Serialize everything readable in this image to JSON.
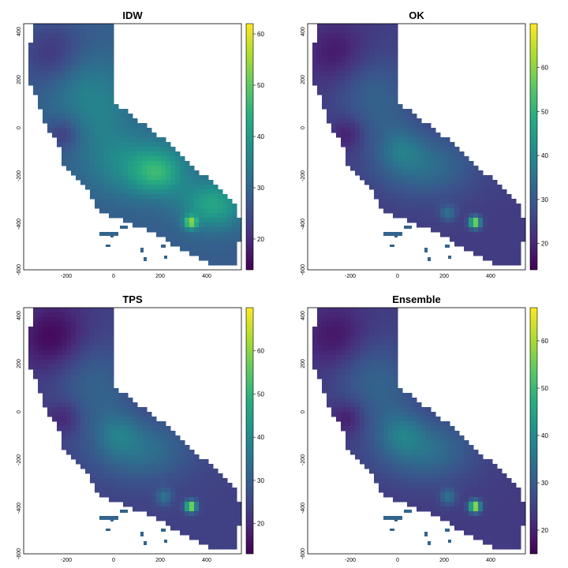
{
  "panels": [
    {
      "title": "IDW",
      "colorbar_ticks": [
        "20",
        "30",
        "40",
        "50",
        "60"
      ],
      "colorbar_range": [
        14,
        62
      ],
      "x_ticks": [
        "-200",
        "0",
        "200",
        "400"
      ],
      "y_ticks": [
        "400",
        "200",
        "0",
        "-200",
        "-400",
        "-600"
      ]
    },
    {
      "title": "OK",
      "colorbar_ticks": [
        "20",
        "30",
        "40",
        "50",
        "60"
      ],
      "colorbar_range": [
        14,
        70
      ],
      "x_ticks": [
        "-200",
        "0",
        "200",
        "400"
      ],
      "y_ticks": [
        "400",
        "200",
        "0",
        "-200",
        "-400",
        "-600"
      ]
    },
    {
      "title": "TPS",
      "colorbar_ticks": [
        "20",
        "30",
        "40",
        "50",
        "60"
      ],
      "colorbar_range": [
        13,
        70
      ],
      "x_ticks": [
        "-200",
        "0",
        "200",
        "400"
      ],
      "y_ticks": [
        "400",
        "200",
        "0",
        "-200",
        "-400",
        "-600"
      ]
    },
    {
      "title": "Ensemble",
      "colorbar_ticks": [
        "20",
        "30",
        "40",
        "50",
        "60"
      ],
      "colorbar_range": [
        15,
        67
      ],
      "x_ticks": [
        "-200",
        "0",
        "200",
        "400"
      ],
      "y_ticks": [
        "400",
        "200",
        "0",
        "-200",
        "-400",
        "-600"
      ]
    }
  ],
  "colormap": "viridis"
}
